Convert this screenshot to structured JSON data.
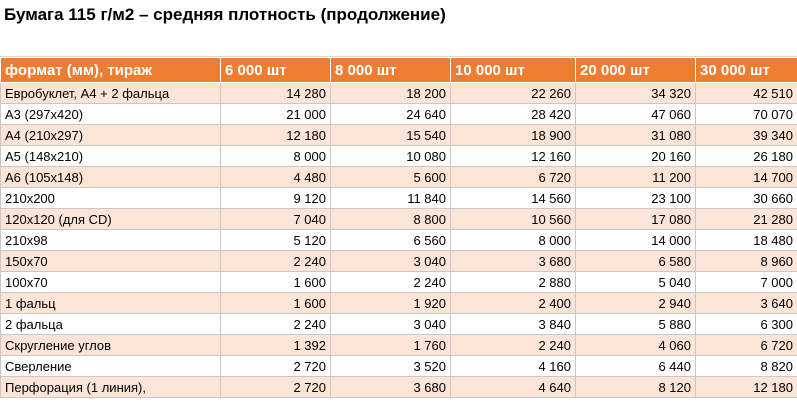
{
  "title": "Бумага 115 г/м2 – средняя плотность (продолжение)",
  "table": {
    "header": [
      "формат (мм), тираж",
      "6 000 шт",
      "8 000 шт",
      "10 000 шт",
      "20 000 шт",
      "30 000 шт"
    ],
    "rows": [
      [
        "Евробуклет,  А4 + 2 фальца",
        "14 280",
        "18 200",
        "22 260",
        "34 320",
        "42 510"
      ],
      [
        "А3 (297х420)",
        "21 000",
        "24 640",
        "28 420",
        "47 060",
        "70 070"
      ],
      [
        "А4 (210х297)",
        "12 180",
        "15 540",
        "18 900",
        "31 080",
        "39 340"
      ],
      [
        "А5 (148х210)",
        "8 000",
        "10 080",
        "12 160",
        "20 160",
        "26 180"
      ],
      [
        "А6 (105х148)",
        "4 480",
        "5 600",
        "6 720",
        "11 200",
        "14 700"
      ],
      [
        "210х200",
        "9 120",
        "11 840",
        "14 560",
        "23 100",
        "30 660"
      ],
      [
        "120х120 (для CD)",
        "7 040",
        "8 800",
        "10 560",
        "17 080",
        "21 280"
      ],
      [
        "210х98",
        "5 120",
        "6 560",
        "8 000",
        "14 000",
        "18 480"
      ],
      [
        "150х70",
        "2 240",
        "3 040",
        "3 680",
        "6 580",
        "8 960"
      ],
      [
        "100х70",
        "1 600",
        "2 240",
        "2 880",
        "5 040",
        "7 000"
      ],
      [
        "1 фальц",
        "1 600",
        "1 920",
        "2 400",
        "2 940",
        "3 640"
      ],
      [
        "2 фальца",
        "2 240",
        "3 040",
        "3 840",
        "5 880",
        "6 300"
      ],
      [
        "Скругление углов",
        "1 392",
        "1 760",
        "2 240",
        "4 060",
        "6 720"
      ],
      [
        "Сверление",
        "2 720",
        "3 520",
        "4 160",
        "6 440",
        "8 820"
      ],
      [
        "Перфорация (1 линия),",
        "2 720",
        "3 680",
        "4 640",
        "8 120",
        "12 180"
      ]
    ]
  }
}
